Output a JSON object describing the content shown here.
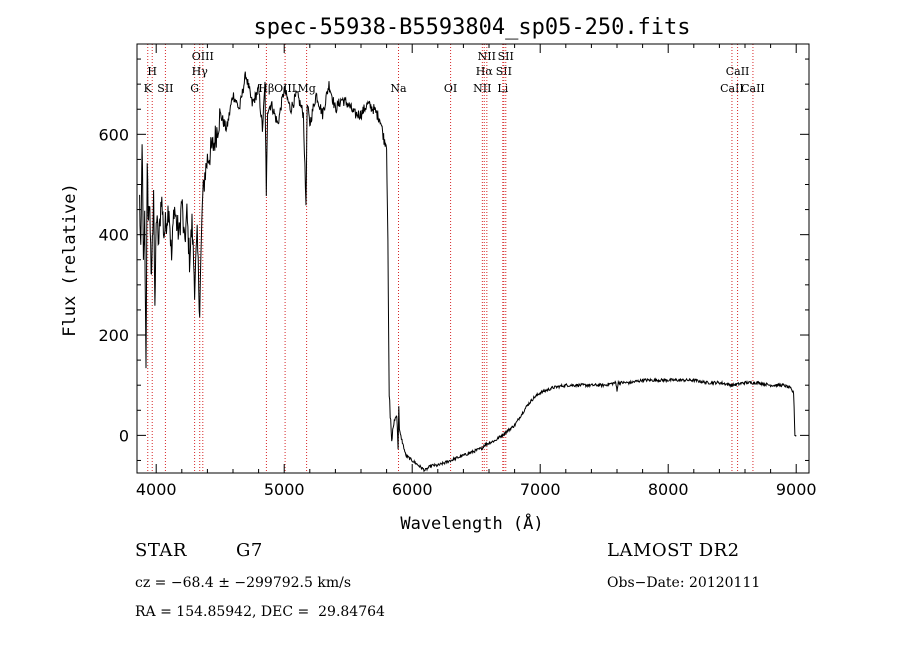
{
  "chart_data": {
    "type": "line",
    "title": "spec-55938-B5593804_sp05-250.fits",
    "xlabel": "Wavelength (Å)",
    "ylabel": "Flux (relative)",
    "xlim": [
      3850,
      9100
    ],
    "ylim": [
      -75,
      780
    ],
    "x_ticks": [
      4000,
      5000,
      6000,
      7000,
      8000,
      9000
    ],
    "y_ticks": [
      0,
      200,
      400,
      600
    ],
    "grid": false,
    "line_color": "#000000",
    "marker_color": "#d62728",
    "series": [
      {
        "x": [
          3870,
          3880,
          3890,
          3900,
          3910,
          3920,
          3930,
          3940,
          3950,
          3960,
          3970,
          3980,
          3990,
          4000,
          4020,
          4040,
          4060,
          4080,
          4100,
          4120,
          4140,
          4160,
          4180,
          4200,
          4220,
          4240,
          4260,
          4280,
          4300,
          4320,
          4340,
          4360,
          4380,
          4400,
          4450,
          4500,
          4550,
          4600,
          4650,
          4700,
          4750,
          4800,
          4830,
          4850,
          4860,
          4870,
          4900,
          4950,
          5000,
          5050,
          5100,
          5150,
          5170,
          5180,
          5200,
          5250,
          5300,
          5350,
          5400,
          5450,
          5500,
          5550,
          5600,
          5650,
          5700,
          5750,
          5780,
          5800,
          5810,
          5820,
          5840,
          5860,
          5880,
          5890,
          5895,
          5900,
          5920,
          5950,
          6000,
          6050,
          6100,
          6150,
          6200,
          6250,
          6300,
          6350,
          6400,
          6450,
          6500,
          6550,
          6560,
          6600,
          6650,
          6700,
          6750,
          6800,
          6850,
          6900,
          6950,
          7000,
          7100,
          7200,
          7300,
          7400,
          7500,
          7590,
          7600,
          7610,
          7700,
          7800,
          7900,
          8000,
          8100,
          8200,
          8300,
          8400,
          8500,
          8600,
          8700,
          8800,
          8900,
          8950,
          8980,
          8990,
          9000
        ],
        "y": [
          470,
          350,
          600,
          330,
          430,
          150,
          520,
          430,
          470,
          300,
          380,
          500,
          230,
          440,
          380,
          480,
          400,
          430,
          460,
          350,
          460,
          420,
          400,
          470,
          380,
          440,
          350,
          420,
          300,
          390,
          250,
          460,
          520,
          550,
          580,
          640,
          610,
          680,
          650,
          720,
          660,
          690,
          610,
          700,
          470,
          650,
          660,
          620,
          690,
          650,
          680,
          640,
          460,
          660,
          620,
          680,
          640,
          700,
          650,
          670,
          660,
          640,
          640,
          660,
          650,
          630,
          590,
          580,
          380,
          80,
          -10,
          30,
          40,
          -30,
          60,
          10,
          -10,
          -40,
          -50,
          -60,
          -70,
          -60,
          -60,
          -55,
          -50,
          -45,
          -40,
          -35,
          -30,
          -25,
          -20,
          -15,
          -10,
          0,
          10,
          20,
          40,
          60,
          75,
          85,
          95,
          100,
          100,
          100,
          100,
          105,
          90,
          105,
          105,
          110,
          110,
          110,
          110,
          110,
          105,
          105,
          100,
          105,
          105,
          100,
          100,
          95,
          85,
          0,
          0
        ]
      }
    ],
    "line_markers": [
      {
        "wl": 3934,
        "label": "K"
      },
      {
        "wl": 3969,
        "label": "H"
      },
      {
        "wl": 4072,
        "label": "SII"
      },
      {
        "wl": 4300,
        "label": "G"
      },
      {
        "wl": 4340,
        "label": "Hγ"
      },
      {
        "wl": 4364,
        "label": "OIII"
      },
      {
        "wl": 4861,
        "label": "Hβ"
      },
      {
        "wl": 5007,
        "label": "OIII"
      },
      {
        "wl": 5175,
        "label": "Mg"
      },
      {
        "wl": 5893,
        "label": "Na"
      },
      {
        "wl": 6300,
        "label": "OI"
      },
      {
        "wl": 6548,
        "label": "NII"
      },
      {
        "wl": 6563,
        "label": "Hα"
      },
      {
        "wl": 6583,
        "label": "NII"
      },
      {
        "wl": 6708,
        "label": "Li"
      },
      {
        "wl": 6716,
        "label": "SII"
      },
      {
        "wl": 6731,
        "label": "SII"
      },
      {
        "wl": 8498,
        "label": "CaII"
      },
      {
        "wl": 8542,
        "label": "CaII"
      },
      {
        "wl": 8662,
        "label": "CaII"
      }
    ]
  },
  "info": {
    "object_class": "STAR",
    "subclass": "G7",
    "survey": "LAMOST DR2",
    "cz": "cz = −68.4 ± −299792.5 km/s",
    "obs_date": "Obs−Date: 20120111",
    "radec": "RA = 154.85942, DEC =  29.84764"
  }
}
